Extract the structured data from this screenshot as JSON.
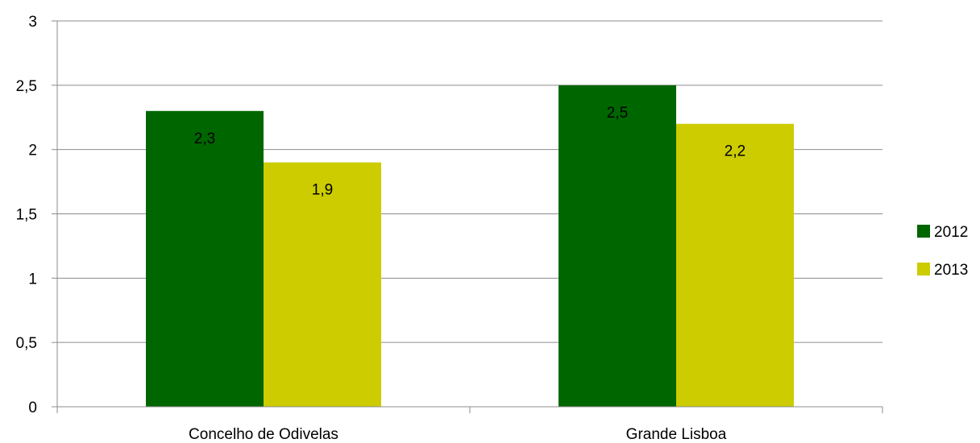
{
  "chart_data": {
    "type": "bar",
    "title": "",
    "xlabel": "",
    "ylabel": "",
    "categories": [
      "Concelho de Odivelas",
      "Grande Lisboa"
    ],
    "series": [
      {
        "name": "2012",
        "values": [
          2.3,
          2.5
        ],
        "labels": [
          "2,3",
          "2,5"
        ],
        "color": "#006600"
      },
      {
        "name": "2013",
        "values": [
          1.9,
          2.2
        ],
        "labels": [
          "1,9",
          "2,2"
        ],
        "color": "#cccc00"
      }
    ],
    "ylim": [
      0,
      3
    ],
    "yticks": [
      0,
      0.5,
      1,
      1.5,
      2,
      2.5,
      3
    ],
    "ytick_labels": [
      "0",
      "0,5",
      "1",
      "1,5",
      "2",
      "2,5",
      "3"
    ],
    "grid": true,
    "gridline_color": "#8c8c8c",
    "legend_position": "right"
  }
}
